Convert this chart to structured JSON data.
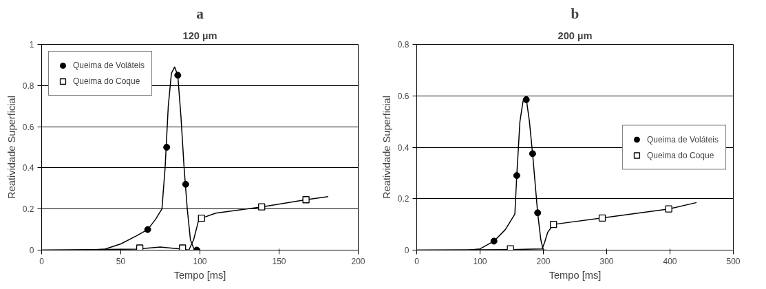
{
  "chart_data": [
    {
      "type": "line",
      "title": "a",
      "subtitle": "120 µm",
      "xlabel": "Tempo [ms]",
      "ylabel": "Reatividade Superficial",
      "xlim": [
        0,
        200
      ],
      "xticks": [
        0,
        50,
        100,
        150,
        200
      ],
      "ylim": [
        0,
        1
      ],
      "yticks": [
        0,
        0.2,
        0.4,
        0.6,
        0.8,
        1
      ],
      "grid": "y",
      "legend": "top left",
      "series": [
        {
          "color": "#000000",
          "marker": "none",
          "x": [
            0,
            30,
            40,
            50,
            60,
            67,
            72,
            76,
            78,
            80,
            82,
            84,
            86,
            88,
            90,
            92,
            94,
            96,
            98,
            100
          ],
          "values": [
            0,
            0,
            0.005,
            0.03,
            0.07,
            0.1,
            0.15,
            0.2,
            0.4,
            0.7,
            0.86,
            0.89,
            0.85,
            0.65,
            0.4,
            0.2,
            0.05,
            0.01,
            0,
            0
          ]
        },
        {
          "color": "#000000",
          "marker": "none",
          "x": [
            0,
            60,
            75,
            89,
            93,
            96,
            99,
            101,
            110,
            139,
            167,
            181
          ],
          "values": [
            0,
            0.005,
            0.015,
            0.005,
            0,
            0.05,
            0.14,
            0.155,
            0.18,
            0.21,
            0.245,
            0.26
          ]
        },
        {
          "type": "scatter",
          "name": "Queima de Voláteis",
          "color": "#000000",
          "marker": "circle",
          "x": [
            67,
            79,
            86,
            91,
            98
          ],
          "values": [
            0.1,
            0.5,
            0.85,
            0.32,
            0
          ]
        },
        {
          "type": "scatter",
          "name": "Queima do Coque",
          "color": "#000000",
          "marker": "square",
          "x": [
            62,
            89,
            101,
            139,
            167
          ],
          "values": [
            0.01,
            0.01,
            0.155,
            0.21,
            0.245
          ]
        }
      ]
    },
    {
      "type": "line",
      "title": "b",
      "subtitle": "200 µm",
      "xlabel": "Tempo [ms]",
      "ylabel": "Reatividade Superficial",
      "xlim": [
        0,
        500
      ],
      "xticks": [
        0,
        100,
        200,
        300,
        400,
        500
      ],
      "ylim": [
        0,
        0.8
      ],
      "yticks": [
        0,
        0.2,
        0.4,
        0.6,
        0.8
      ],
      "grid": "y",
      "legend": "right",
      "series": [
        {
          "color": "#000000",
          "marker": "none",
          "x": [
            0,
            80,
            100,
            122,
            140,
            155,
            158,
            163,
            168,
            173,
            178,
            183,
            191,
            196,
            200,
            205
          ],
          "values": [
            0,
            0,
            0.005,
            0.035,
            0.08,
            0.14,
            0.29,
            0.5,
            0.58,
            0.59,
            0.5,
            0.375,
            0.145,
            0.04,
            0,
            0
          ]
        },
        {
          "color": "#000000",
          "marker": "none",
          "x": [
            0,
            148,
            198,
            202,
            207,
            216,
            293,
            398,
            442
          ],
          "values": [
            0,
            0.002,
            0.005,
            0.03,
            0.07,
            0.1,
            0.125,
            0.16,
            0.185
          ]
        },
        {
          "type": "scatter",
          "name": "Queima de Voláteis",
          "color": "#000000",
          "marker": "circle",
          "x": [
            122,
            158,
            173,
            183,
            191
          ],
          "values": [
            0.035,
            0.29,
            0.585,
            0.375,
            0.145
          ]
        },
        {
          "type": "scatter",
          "name": "Queima do Coque",
          "color": "#000000",
          "marker": "square",
          "x": [
            148,
            216,
            293,
            398
          ],
          "values": [
            0.005,
            0.1,
            0.125,
            0.16
          ]
        }
      ]
    }
  ]
}
